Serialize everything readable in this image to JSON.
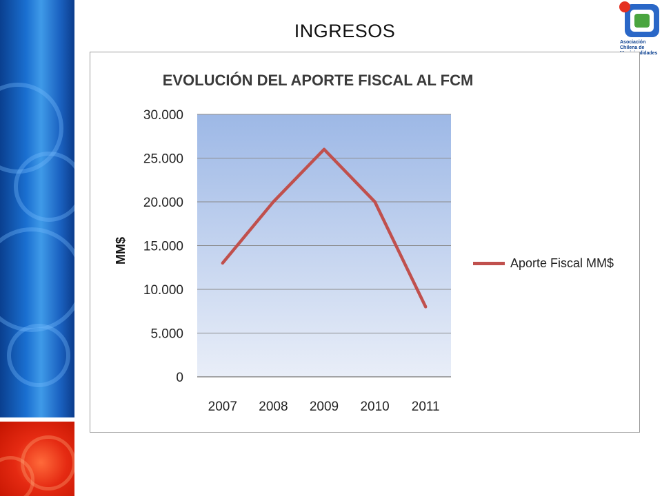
{
  "page": {
    "title": "INGRESOS"
  },
  "logo": {
    "text": "Asociación Chilena de Municipalidades",
    "icon": "achm-logo-icon"
  },
  "colors": {
    "series": "#c0504d",
    "plot_top": "#9db8e6",
    "plot_bottom": "#e9eef8",
    "grid": "#8a8a8a"
  },
  "chart_data": {
    "type": "line",
    "title": "EVOLUCIÓN DEL APORTE FISCAL AL FCM",
    "xlabel": "",
    "ylabel": "MM$",
    "categories": [
      "2007",
      "2008",
      "2009",
      "2010",
      "2011"
    ],
    "ylim": [
      0,
      30000
    ],
    "yticks": [
      "0",
      "5.000",
      "10.000",
      "15.000",
      "20.000",
      "25.000",
      "30.000"
    ],
    "series": [
      {
        "name": "Aporte Fiscal MM$",
        "values": [
          13000,
          20000,
          26000,
          20000,
          8000
        ]
      }
    ],
    "grid": true,
    "legend": "right"
  }
}
